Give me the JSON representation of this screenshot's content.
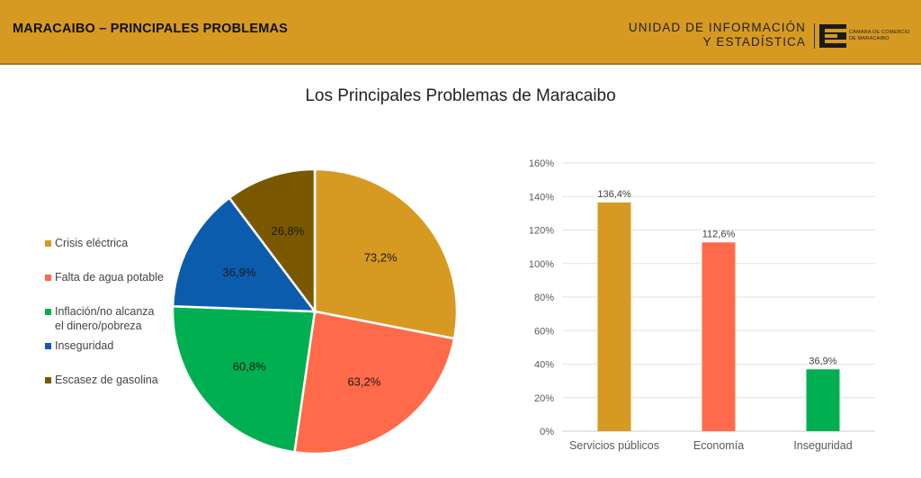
{
  "header": {
    "title": "MARACAIBO – PRINCIPALES PROBLEMAS",
    "org_line1": "UNIDAD DE INFORMACIÓN",
    "org_line2": "Y ESTADÍSTICA",
    "logo_text_line1": "CÁMARA DE COMERCIO",
    "logo_text_line2": "DE MARACAIBO"
  },
  "page_title": "Los Principales Problemas de Maracaibo",
  "chart_data": [
    {
      "type": "pie",
      "slices": [
        {
          "label": "Crisis eléctrica",
          "value": 73.2,
          "display": "73,2%",
          "color": "#d69a22"
        },
        {
          "label": "Falta de agua potable",
          "value": 63.2,
          "display": "63,2%",
          "color": "#ff6b4a"
        },
        {
          "label": "Inflación/no alcanza el dinero/pobreza",
          "value": 60.8,
          "display": "60,8%",
          "color": "#00b050"
        },
        {
          "label": "Inseguridad",
          "value": 36.9,
          "display": "36,9%",
          "color": "#0b5cad"
        },
        {
          "label": "Escasez de gasolina",
          "value": 26.8,
          "display": "26,8%",
          "color": "#7a5800"
        }
      ],
      "legend": {
        "position": "left",
        "items": [
          {
            "lines": [
              "Crisis eléctrica"
            ],
            "color": "#d69a22"
          },
          {
            "lines": [
              "Falta de agua potable"
            ],
            "color": "#ff6b4a"
          },
          {
            "lines": [
              "Inflación/no alcanza",
              "el dinero/pobreza"
            ],
            "color": "#00b050"
          },
          {
            "lines": [
              "Inseguridad"
            ],
            "color": "#0b5cad"
          },
          {
            "lines": [
              "Escasez de gasolina"
            ],
            "color": "#7a5800"
          }
        ]
      }
    },
    {
      "type": "bar",
      "categories": [
        "Servicios públicos",
        "Economía",
        "Inseguridad"
      ],
      "values": [
        136.4,
        112.6,
        36.9
      ],
      "value_labels": [
        "136,4%",
        "112,6%",
        "36,9%"
      ],
      "colors": [
        "#d69a22",
        "#ff6b4a",
        "#00b050"
      ],
      "ylim": [
        0,
        160
      ],
      "yticks": [
        0,
        20,
        40,
        60,
        80,
        100,
        120,
        140,
        160
      ],
      "ytick_labels": [
        "0%",
        "20%",
        "40%",
        "60%",
        "80%",
        "100%",
        "120%",
        "140%",
        "160%"
      ],
      "grid": true
    }
  ]
}
